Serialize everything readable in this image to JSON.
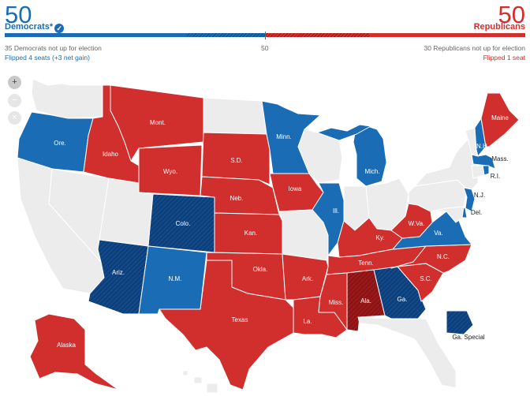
{
  "header": {
    "dem_seats": "50",
    "dem_label": "Democrats*",
    "rep_seats": "50",
    "rep_label": "Republicans",
    "dem_note": "35 Democrats not up for election",
    "midpoint": "50",
    "rep_note": "30 Republicans not up for election",
    "dem_flip": "Flipped 4 seats (+3 net gain)",
    "rep_flip": "Flipped 1 seat"
  },
  "colors": {
    "dem": "#1a6db5",
    "dem_flip": "#0d3f7a",
    "rep": "#d12e2e",
    "rep_flip": "#8c1414",
    "none": "#ececec"
  },
  "zoom_controls": [
    "zoom-in-icon",
    "zoom-out-icon",
    "reset-icon"
  ],
  "states": {
    "wa": {
      "label": "",
      "winner": "none"
    },
    "or": {
      "label": "Ore.",
      "winner": "dem"
    },
    "ca": {
      "label": "",
      "winner": "none"
    },
    "nv": {
      "label": "",
      "winner": "none"
    },
    "id": {
      "label": "Idaho",
      "winner": "rep"
    },
    "mt": {
      "label": "Mont.",
      "winner": "rep"
    },
    "wy": {
      "label": "Wyo.",
      "winner": "rep"
    },
    "ut": {
      "label": "",
      "winner": "none"
    },
    "az": {
      "label": "Ariz.",
      "winner": "dem_flip"
    },
    "co": {
      "label": "Colo.",
      "winner": "dem_flip"
    },
    "nm": {
      "label": "N.M.",
      "winner": "dem"
    },
    "nd": {
      "label": "",
      "winner": "none"
    },
    "sd": {
      "label": "S.D.",
      "winner": "rep"
    },
    "ne": {
      "label": "Neb.",
      "winner": "rep"
    },
    "ks": {
      "label": "Kan.",
      "winner": "rep"
    },
    "ok": {
      "label": "Okla.",
      "winner": "rep"
    },
    "tx": {
      "label": "Texas",
      "winner": "rep"
    },
    "mn": {
      "label": "Minn.",
      "winner": "dem"
    },
    "ia": {
      "label": "Iowa",
      "winner": "rep"
    },
    "mo": {
      "label": "",
      "winner": "none"
    },
    "ar": {
      "label": "Ark.",
      "winner": "rep"
    },
    "la": {
      "label": "La.",
      "winner": "rep"
    },
    "wi": {
      "label": "",
      "winner": "none"
    },
    "il": {
      "label": "Ill.",
      "winner": "dem"
    },
    "mi": {
      "label": "Mich.",
      "winner": "dem"
    },
    "in": {
      "label": "",
      "winner": "none"
    },
    "oh": {
      "label": "",
      "winner": "none"
    },
    "ky": {
      "label": "Ky.",
      "winner": "rep"
    },
    "tn": {
      "label": "Tenn.",
      "winner": "rep"
    },
    "ms": {
      "label": "Miss.",
      "winner": "rep"
    },
    "al": {
      "label": "Ala.",
      "winner": "rep_flip"
    },
    "ga": {
      "label": "Ga.",
      "winner": "dem_flip"
    },
    "ga_special": {
      "label": "Ga. Special",
      "winner": "dem_flip"
    },
    "fl": {
      "label": "",
      "winner": "none"
    },
    "sc": {
      "label": "S.C.",
      "winner": "rep"
    },
    "nc": {
      "label": "N.C.",
      "winner": "rep"
    },
    "va": {
      "label": "Va.",
      "winner": "dem"
    },
    "wv": {
      "label": "W.Va.",
      "winner": "rep"
    },
    "pa": {
      "label": "",
      "winner": "none"
    },
    "ny": {
      "label": "",
      "winner": "none"
    },
    "vt": {
      "label": "",
      "winner": "none"
    },
    "nh": {
      "label": "N.H.",
      "winner": "dem"
    },
    "me": {
      "label": "Maine",
      "winner": "rep"
    },
    "ma": {
      "label": "Mass.",
      "winner": "dem"
    },
    "ri": {
      "label": "R.I.",
      "winner": "dem"
    },
    "ct": {
      "label": "",
      "winner": "none"
    },
    "nj": {
      "label": "N.J.",
      "winner": "dem"
    },
    "de": {
      "label": "Del.",
      "winner": "dem"
    },
    "md": {
      "label": "",
      "winner": "none"
    },
    "ak": {
      "label": "Alaska",
      "winner": "rep"
    },
    "hi": {
      "label": "",
      "winner": "none"
    }
  }
}
